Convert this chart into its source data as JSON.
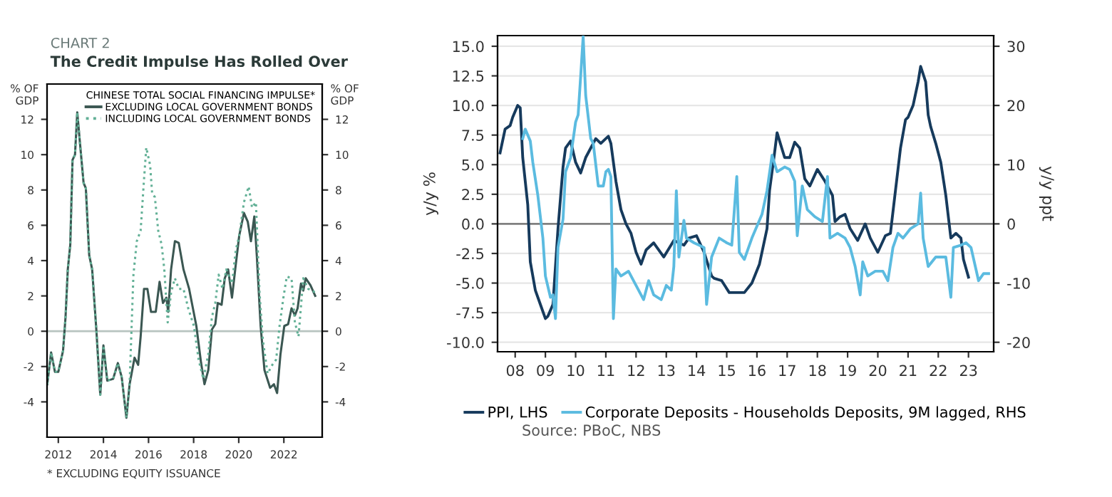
{
  "chart_data": [
    {
      "type": "line",
      "subtitle": "CHART 2",
      "title": "The Credit Impulse Has Rolled Over",
      "ylabel": "% OF\nGDP",
      "y2label": "% OF\nGDP",
      "legend_title": "CHINESE TOTAL SOCIAL FINANCING IMPULSE*",
      "legend": "top right",
      "grid": false,
      "xlim": [
        2011.5,
        2023.7
      ],
      "xticks": [
        2012,
        2014,
        2016,
        2018,
        2020,
        2022
      ],
      "ylim": [
        -6,
        14
      ],
      "yticks": [
        -4,
        -2,
        0,
        2,
        4,
        6,
        8,
        10,
        12
      ],
      "y2lim": [
        -6,
        14
      ],
      "y2ticks": [
        -4,
        -2,
        0,
        2,
        4,
        6,
        8,
        10,
        12
      ],
      "ref_lines": [
        {
          "axis": "y",
          "value": 0,
          "color": "#b8c4c0"
        }
      ],
      "annotations": [
        "* EXCLUDING EQUITY ISSUANCE"
      ],
      "series": [
        {
          "name": "EXCLUDING LOCAL GOVERNMENT BONDS",
          "color": "#3b5752",
          "line_style": "solid",
          "x": [
            2011.51,
            2011.68,
            2011.85,
            2012.0,
            2012.21,
            2012.32,
            2012.42,
            2012.53,
            2012.63,
            2012.74,
            2012.84,
            2012.95,
            2013.12,
            2013.22,
            2013.37,
            2013.5,
            2013.69,
            2013.86,
            2014.0,
            2014.17,
            2014.43,
            2014.64,
            2014.81,
            2015.02,
            2015.16,
            2015.38,
            2015.54,
            2015.65,
            2015.8,
            2015.95,
            2016.11,
            2016.32,
            2016.49,
            2016.64,
            2016.79,
            2016.87,
            2017.0,
            2017.17,
            2017.34,
            2017.55,
            2017.8,
            2018.12,
            2018.33,
            2018.48,
            2018.65,
            2018.81,
            2018.96,
            2019.07,
            2019.24,
            2019.38,
            2019.53,
            2019.7,
            2019.87,
            2020.02,
            2020.23,
            2020.4,
            2020.54,
            2020.69,
            2020.8,
            2020.97,
            2021.14,
            2021.39,
            2021.56,
            2021.7,
            2021.85,
            2022.02,
            2022.19,
            2022.34,
            2022.49,
            2022.61,
            2022.76,
            2022.86,
            2022.97,
            2023.18,
            2023.39
          ],
          "values": [
            -3.0,
            -1.2,
            -2.3,
            -2.3,
            -1.1,
            0.8,
            3.5,
            4.9,
            9.7,
            10.0,
            12.4,
            10.8,
            8.4,
            8.1,
            4.3,
            3.5,
            0.0,
            -3.6,
            -0.8,
            -2.8,
            -2.7,
            -1.8,
            -2.6,
            -4.9,
            -3.0,
            -1.5,
            -1.9,
            -0.3,
            2.4,
            2.4,
            1.1,
            1.1,
            2.8,
            1.6,
            1.9,
            1.1,
            3.5,
            5.1,
            5.0,
            3.5,
            2.4,
            0.3,
            -1.8,
            -3.0,
            -2.2,
            0.1,
            0.4,
            1.6,
            1.5,
            3.0,
            3.5,
            1.9,
            3.8,
            5.4,
            6.7,
            6.2,
            5.1,
            6.5,
            4.3,
            0.3,
            -2.2,
            -3.2,
            -3.0,
            -3.5,
            -1.3,
            0.3,
            0.4,
            1.3,
            0.9,
            1.3,
            2.7,
            2.3,
            3.0,
            2.6,
            2.0
          ]
        },
        {
          "name": "INCLUDING LOCAL GOVERNMENT BONDS",
          "color": "#62b096",
          "line_style": "dotted",
          "x": [
            2011.51,
            2011.68,
            2011.85,
            2012.0,
            2012.21,
            2012.32,
            2012.42,
            2012.53,
            2012.63,
            2012.74,
            2012.84,
            2012.95,
            2013.12,
            2013.22,
            2013.37,
            2013.5,
            2013.69,
            2013.86,
            2014.0,
            2014.17,
            2014.43,
            2014.64,
            2014.81,
            2015.02,
            2015.16,
            2015.33,
            2015.48,
            2015.65,
            2015.8,
            2015.9,
            2016.07,
            2016.16,
            2016.28,
            2016.43,
            2016.58,
            2016.7,
            2016.85,
            2017.0,
            2017.17,
            2017.34,
            2017.55,
            2017.76,
            2018.01,
            2018.22,
            2018.43,
            2018.65,
            2018.81,
            2018.96,
            2019.11,
            2019.28,
            2019.45,
            2019.7,
            2019.87,
            2020.02,
            2020.23,
            2020.44,
            2020.59,
            2020.76,
            2020.92,
            2021.07,
            2021.28,
            2021.49,
            2021.66,
            2021.81,
            2021.98,
            2022.13,
            2022.34,
            2022.49,
            2022.65,
            2022.86,
            2023.08,
            2023.39
          ],
          "values": [
            -3.0,
            -1.2,
            -2.3,
            -2.3,
            -1.1,
            0.8,
            3.5,
            4.9,
            9.7,
            10.0,
            12.4,
            10.8,
            8.4,
            8.1,
            4.3,
            3.5,
            0.0,
            -3.6,
            -0.8,
            -2.8,
            -2.7,
            -1.8,
            -2.6,
            -4.9,
            -3.0,
            3.2,
            5.1,
            5.7,
            8.6,
            10.4,
            9.4,
            7.8,
            7.6,
            5.7,
            4.9,
            3.5,
            0.5,
            2.2,
            3.0,
            2.4,
            2.4,
            1.3,
            0.3,
            -1.6,
            -2.7,
            -1.3,
            0.8,
            1.6,
            3.2,
            2.4,
            3.5,
            2.7,
            4.6,
            5.4,
            7.3,
            8.2,
            7.0,
            7.3,
            2.2,
            -0.5,
            -2.4,
            -1.9,
            -1.6,
            0.3,
            1.9,
            3.1,
            3.0,
            0.5,
            -0.3,
            3.0,
            2.4,
            2.2
          ]
        }
      ]
    },
    {
      "type": "line",
      "ylabel": "y/y %",
      "y2label": "y/y ppt",
      "legend": "bottom",
      "grid": "y",
      "xlim": [
        "2007-12",
        "2024-05"
      ],
      "xticks": [
        {
          "value": "2008-07",
          "label": "08"
        },
        {
          "value": "2009-07",
          "label": "09"
        },
        {
          "value": "2010-07",
          "label": "10"
        },
        {
          "value": "2011-07",
          "label": "11"
        },
        {
          "value": "2012-07",
          "label": "12"
        },
        {
          "value": "2013-07",
          "label": "13"
        },
        {
          "value": "2014-07",
          "label": "14"
        },
        {
          "value": "2015-07",
          "label": "15"
        },
        {
          "value": "2016-07",
          "label": "16"
        },
        {
          "value": "2017-07",
          "label": "17"
        },
        {
          "value": "2018-07",
          "label": "18"
        },
        {
          "value": "2019-07",
          "label": "19"
        },
        {
          "value": "2020-07",
          "label": "20"
        },
        {
          "value": "2021-07",
          "label": "21"
        },
        {
          "value": "2022-07",
          "label": "22"
        },
        {
          "value": "2023-07",
          "label": "23"
        }
      ],
      "ylim": [
        -10.8,
        15.9
      ],
      "yticks": [
        {
          "value": -10,
          "label": "-10.0"
        },
        -7.5,
        {
          "value": -5,
          "label": "-5.0"
        },
        -2.5,
        {
          "value": 0,
          "label": "0.0"
        },
        2.5,
        {
          "value": 5,
          "label": "5.0"
        },
        7.5,
        {
          "value": 10,
          "label": "10.0"
        },
        12.5,
        {
          "value": 15,
          "label": "15.0"
        }
      ],
      "y2lim": [
        -21.6,
        31.8
      ],
      "y2ticks": [
        -20,
        -10,
        0,
        10,
        20,
        30
      ],
      "ref_lines": [
        {
          "axis": "y",
          "value": 0,
          "color": "#808080"
        }
      ],
      "annotations": [
        "Source: PBoC, NBS"
      ],
      "series": [
        {
          "name": "PPI, LHS",
          "color": "#163a5c",
          "line_style": "solid",
          "x": [
            "2008-01",
            "2008-03",
            "2008-05",
            "2008-06",
            "2008-08",
            "2008-09",
            "2008-10",
            "2008-12",
            "2009-01",
            "2009-03",
            "2009-05",
            "2009-07",
            "2009-08",
            "2009-10",
            "2009-12",
            "2010-02",
            "2010-03",
            "2010-05",
            "2010-07",
            "2010-09",
            "2010-11",
            "2011-01",
            "2011-03",
            "2011-05",
            "2011-07",
            "2011-08",
            "2011-09",
            "2011-11",
            "2012-01",
            "2012-03",
            "2012-05",
            "2012-07",
            "2012-09",
            "2012-11",
            "2013-02",
            "2013-06",
            "2013-10",
            "2014-02",
            "2014-04",
            "2014-07",
            "2014-10",
            "2015-01",
            "2015-02",
            "2015-05",
            "2015-08",
            "2016-02",
            "2016-05",
            "2016-08",
            "2016-11",
            "2016-12",
            "2017-02",
            "2017-03",
            "2017-06",
            "2017-08",
            "2017-10",
            "2017-12",
            "2018-02",
            "2018-04",
            "2018-07",
            "2018-10",
            "2019-01",
            "2019-02",
            "2019-04",
            "2019-06",
            "2019-08",
            "2019-11",
            "2020-02",
            "2020-04",
            "2020-07",
            "2020-10",
            "2020-12",
            "2021-02",
            "2021-04",
            "2021-06",
            "2021-07",
            "2021-09",
            "2021-11",
            "2021-12",
            "2022-02",
            "2022-03",
            "2022-04",
            "2022-06",
            "2022-08",
            "2022-10",
            "2022-12",
            "2023-02",
            "2023-04",
            "2023-05",
            "2023-07"
          ],
          "values": [
            6.0,
            8.0,
            8.3,
            9.0,
            10.0,
            9.8,
            5.6,
            1.6,
            -3.2,
            -5.6,
            -6.8,
            -8.0,
            -7.8,
            -6.8,
            -0.4,
            4.8,
            6.4,
            7.0,
            5.2,
            4.3,
            5.6,
            6.4,
            7.2,
            6.8,
            7.2,
            7.4,
            6.8,
            3.6,
            1.2,
            0.0,
            -0.8,
            -2.4,
            -3.4,
            -2.2,
            -1.6,
            -2.8,
            -1.4,
            -1.8,
            -1.2,
            -1.0,
            -2.4,
            -4.4,
            -4.6,
            -4.8,
            -5.8,
            -5.8,
            -5.0,
            -3.4,
            -0.4,
            2.8,
            6.0,
            7.7,
            5.6,
            5.6,
            6.9,
            6.4,
            3.8,
            3.2,
            4.6,
            3.6,
            2.4,
            0.2,
            0.6,
            0.8,
            -0.4,
            -1.4,
            0.0,
            -1.2,
            -2.4,
            -1.0,
            -0.8,
            2.8,
            6.4,
            8.8,
            9.0,
            10.0,
            12.0,
            13.3,
            12.0,
            9.2,
            8.2,
            6.8,
            5.2,
            2.4,
            -1.2,
            -0.8,
            -1.2,
            -3.0,
            -4.5
          ]
        },
        {
          "name": "Corporate Deposits - Households Deposits, 9M lagged, RHS",
          "color": "#5bbbe0",
          "line_style": "solid",
          "axis": "y2",
          "x": [
            "2008-10",
            "2008-11",
            "2009-01",
            "2009-02",
            "2009-04",
            "2009-06",
            "2009-07",
            "2009-09",
            "2009-10",
            "2009-11",
            "2009-12",
            "2010-02",
            "2010-03",
            "2010-05",
            "2010-07",
            "2010-08",
            "2010-09",
            "2010-10",
            "2010-11",
            "2011-01",
            "2011-02",
            "2011-04",
            "2011-06",
            "2011-07",
            "2011-08",
            "2011-09",
            "2011-10",
            "2011-11",
            "2012-01",
            "2012-04",
            "2012-07",
            "2012-10",
            "2012-12",
            "2013-02",
            "2013-05",
            "2013-07",
            "2013-09",
            "2013-10",
            "2013-11",
            "2013-12",
            "2014-02",
            "2014-03",
            "2014-06",
            "2014-08",
            "2014-10",
            "2014-11",
            "2015-01",
            "2015-04",
            "2015-07",
            "2015-09",
            "2015-11",
            "2015-12",
            "2016-02",
            "2016-05",
            "2016-09",
            "2016-11",
            "2017-01",
            "2017-03",
            "2017-06",
            "2017-08",
            "2017-10",
            "2017-11",
            "2018-01",
            "2018-03",
            "2018-06",
            "2018-09",
            "2018-11",
            "2018-12",
            "2019-03",
            "2019-06",
            "2019-08",
            "2019-10",
            "2019-12",
            "2020-01",
            "2020-03",
            "2020-06",
            "2020-09",
            "2020-11",
            "2021-01",
            "2021-03",
            "2021-05",
            "2021-08",
            "2021-11",
            "2021-12",
            "2022-01",
            "2022-03",
            "2022-06",
            "2022-09",
            "2022-10",
            "2022-12",
            "2023-01",
            "2023-04",
            "2023-06",
            "2023-08",
            "2023-11",
            "2024-01",
            "2024-03"
          ],
          "values": [
            14.4,
            16.0,
            14.0,
            10.4,
            4.8,
            -2.4,
            -8.8,
            -12.4,
            -12.0,
            -16.0,
            -4.0,
            0.8,
            8.8,
            11.2,
            17.2,
            18.4,
            24.9,
            31.7,
            21.7,
            14.4,
            13.6,
            6.4,
            6.4,
            8.8,
            9.2,
            8.0,
            -16.0,
            -7.6,
            -8.8,
            -8.0,
            -10.4,
            -12.8,
            -9.6,
            -12.0,
            -12.8,
            -10.4,
            -11.2,
            -7.2,
            5.6,
            -5.6,
            0.6,
            -2.4,
            -3.2,
            -3.6,
            -4.0,
            -13.6,
            -5.6,
            -2.4,
            -3.2,
            -3.6,
            8.0,
            -4.8,
            -6.0,
            -2.4,
            1.6,
            5.6,
            11.6,
            8.8,
            9.6,
            9.2,
            7.2,
            -2.0,
            6.4,
            2.4,
            1.2,
            0.4,
            8.0,
            -2.4,
            -1.6,
            -2.4,
            -4.0,
            -7.2,
            -12.0,
            -6.4,
            -8.8,
            -8.0,
            -8.0,
            -9.6,
            -4.0,
            -1.6,
            -2.4,
            -0.8,
            0.0,
            5.2,
            -2.4,
            -7.2,
            -5.6,
            -5.6,
            -5.6,
            -12.4,
            -4.0,
            -3.6,
            -3.2,
            -4.0,
            -9.6,
            -8.4,
            -8.4
          ]
        }
      ]
    }
  ]
}
